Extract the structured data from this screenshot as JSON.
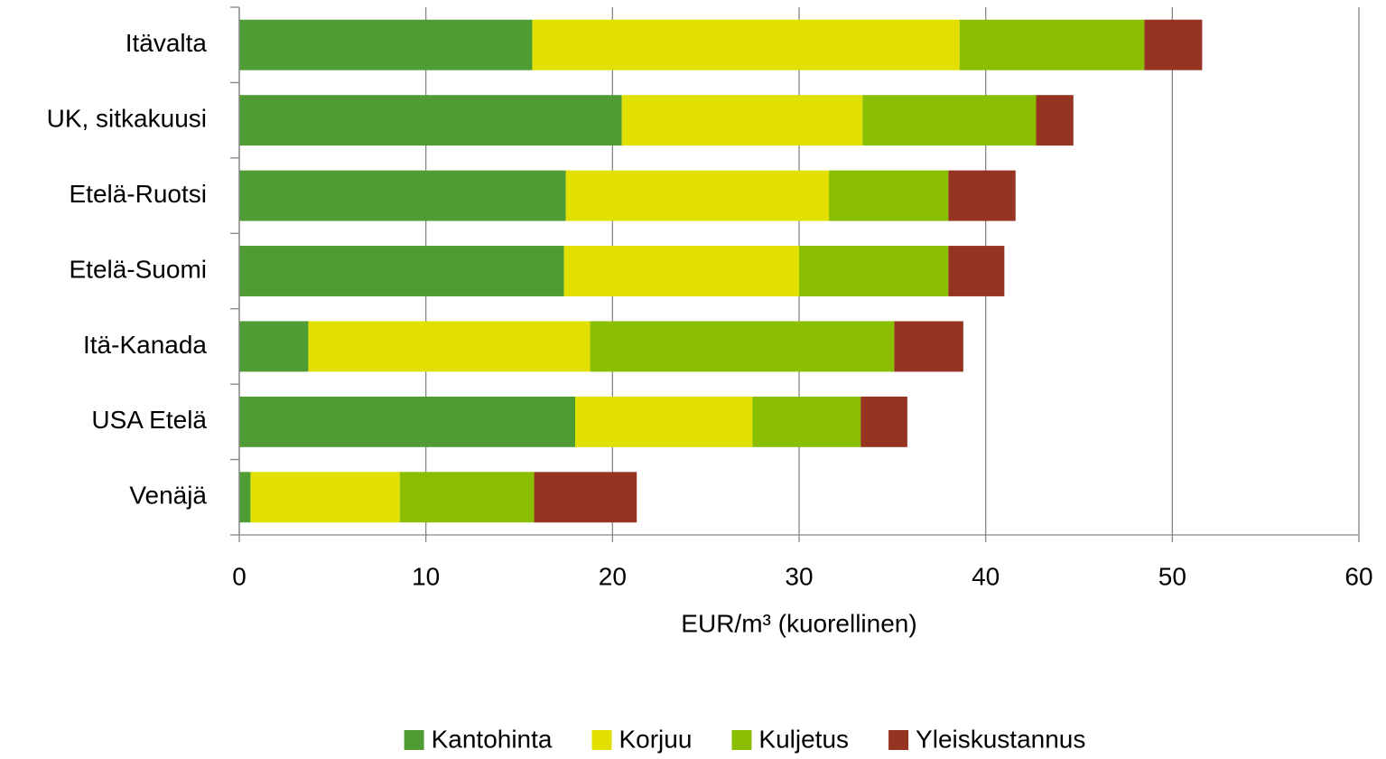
{
  "chart_data": {
    "type": "bar",
    "orientation": "horizontal",
    "stacked": true,
    "x_label": "EUR/m³ (kuorellinen)",
    "categories": [
      "Itävalta",
      "UK, sitkakuusi",
      "Etelä-Ruotsi",
      "Etelä-Suomi",
      "Itä-Kanada",
      "USA Etelä",
      "Venäjä"
    ],
    "series": [
      {
        "name": "Kantohinta",
        "color": "#4f9c34",
        "values": [
          15.7,
          20.5,
          17.5,
          17.4,
          3.7,
          18.0,
          0.6
        ]
      },
      {
        "name": "Korjuu",
        "color": "#e1e000",
        "values": [
          22.9,
          12.9,
          14.1,
          12.6,
          15.1,
          9.5,
          8.0
        ]
      },
      {
        "name": "Kuljetus",
        "color": "#8abe00",
        "values": [
          9.9,
          9.3,
          6.4,
          8.0,
          16.3,
          5.8,
          7.2
        ]
      },
      {
        "name": "Yleiskustannus",
        "color": "#963421",
        "values": [
          3.1,
          2.0,
          3.6,
          3.0,
          3.7,
          2.5,
          5.5
        ]
      }
    ],
    "xlim": [
      0,
      60
    ],
    "xticks": [
      0,
      10,
      20,
      30,
      40,
      50,
      60
    ],
    "grid": true,
    "legend": "bottom"
  }
}
